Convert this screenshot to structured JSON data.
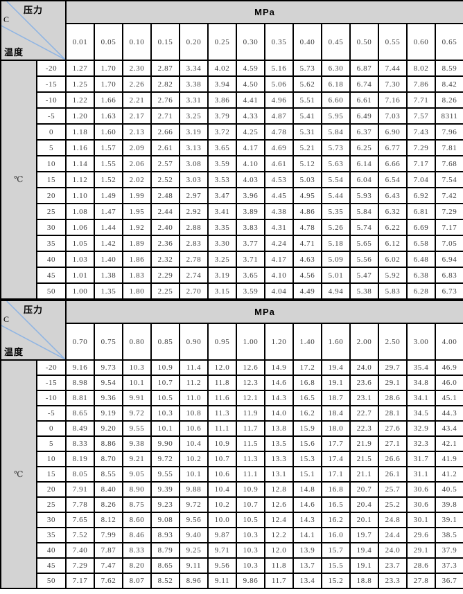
{
  "labels": {
    "pressure": "压力",
    "corner_c": "C",
    "temperature": "温度",
    "unit": "MPa",
    "celsius": "℃"
  },
  "colors": {
    "header_bg": "#d3d3d3",
    "diagonal_line": "#8eb4e3",
    "border": "#000000",
    "text": "#3c3c3c"
  },
  "tables": [
    {
      "name": "low-pressure-table",
      "pressures": [
        "0.01",
        "0.05",
        "0.10",
        "0.15",
        "0.20",
        "0.25",
        "0.30",
        "0.35",
        "0.40",
        "0.45",
        "0.50",
        "0.55",
        "0.60",
        "0.65"
      ],
      "rows": [
        {
          "temp": "-20",
          "values": [
            "1.27",
            "1.70",
            "2.30",
            "2.87",
            "3.34",
            "4.02",
            "4.59",
            "5.16",
            "5.73",
            "6.30",
            "6.87",
            "7.44",
            "8.02",
            "8.59"
          ]
        },
        {
          "temp": "-15",
          "values": [
            "1.25",
            "1.70",
            "2.26",
            "2.82",
            "3.38",
            "3.94",
            "4.50",
            "5.06",
            "5.62",
            "6.18",
            "6.74",
            "7.30",
            "7.86",
            "8.42"
          ]
        },
        {
          "temp": "-10",
          "values": [
            "1.22",
            "1.66",
            "2.21",
            "2.76",
            "3.31",
            "3.86",
            "4.41",
            "4.96",
            "5.51",
            "6.60",
            "6.61",
            "7.16",
            "7.71",
            "8.26"
          ]
        },
        {
          "temp": "-5",
          "values": [
            "1.20",
            "1.63",
            "2.17",
            "2.71",
            "3.25",
            "3.79",
            "4.33",
            "4.87",
            "5.41",
            "5.95",
            "6.49",
            "7.03",
            "7.57",
            "8311"
          ]
        },
        {
          "temp": "0",
          "values": [
            "1.18",
            "1.60",
            "2.13",
            "2.66",
            "3.19",
            "3.72",
            "4.25",
            "4.78",
            "5.31",
            "5.84",
            "6.37",
            "6.90",
            "7.43",
            "7.96"
          ]
        },
        {
          "temp": "5",
          "values": [
            "1.16",
            "1.57",
            "2.09",
            "2.61",
            "3.13",
            "3.65",
            "4.17",
            "4.69",
            "5.21",
            "5.73",
            "6.25",
            "6.77",
            "7.29",
            "7.81"
          ]
        },
        {
          "temp": "10",
          "values": [
            "1.14",
            "1.55",
            "2.06",
            "2.57",
            "3.08",
            "3.59",
            "4.10",
            "4.61",
            "5.12",
            "5.63",
            "6.14",
            "6.66",
            "7.17",
            "7.68"
          ]
        },
        {
          "temp": "15",
          "values": [
            "1.12",
            "1.52",
            "2.02",
            "2.52",
            "3.03",
            "3.53",
            "4.03",
            "4.53",
            "5.03",
            "5.54",
            "6.04",
            "6.54",
            "7.04",
            "7.54"
          ]
        },
        {
          "temp": "20",
          "values": [
            "1.10",
            "1.49",
            "1.99",
            "2.48",
            "2.97",
            "3.47",
            "3.96",
            "4.45",
            "4.95",
            "5.44",
            "5.93",
            "6.43",
            "6.92",
            "7.42"
          ]
        },
        {
          "temp": "25",
          "values": [
            "1.08",
            "1.47",
            "1.95",
            "2.44",
            "2.92",
            "3.41",
            "3.89",
            "4.38",
            "4.86",
            "5.35",
            "5.84",
            "6.32",
            "6.81",
            "7.29"
          ]
        },
        {
          "temp": "30",
          "values": [
            "1.06",
            "1.44",
            "1.92",
            "2.40",
            "2.88",
            "3.35",
            "3.83",
            "4.31",
            "4.78",
            "5.26",
            "5.74",
            "6.22",
            "6.69",
            "7.17"
          ]
        },
        {
          "temp": "35",
          "values": [
            "1.05",
            "1.42",
            "1.89",
            "2.36",
            "2.83",
            "3.30",
            "3.77",
            "4.24",
            "4.71",
            "5.18",
            "5.65",
            "6.12",
            "6.58",
            "7.05"
          ]
        },
        {
          "temp": "40",
          "values": [
            "1.03",
            "1.40",
            "1.86",
            "2.32",
            "2.78",
            "3.25",
            "3.71",
            "4.17",
            "4.63",
            "5.09",
            "5.56",
            "6.02",
            "6.48",
            "6.94"
          ]
        },
        {
          "temp": "45",
          "values": [
            "1.01",
            "1.38",
            "1.83",
            "2.29",
            "2.74",
            "3.19",
            "3.65",
            "4.10",
            "4.56",
            "5.01",
            "5.47",
            "5.92",
            "6.38",
            "6.83"
          ]
        },
        {
          "temp": "50",
          "values": [
            "1.00",
            "1.35",
            "1.80",
            "2.25",
            "2.70",
            "3.15",
            "3.59",
            "4.04",
            "4.49",
            "4.94",
            "5.38",
            "5.83",
            "6.28",
            "6.73"
          ]
        }
      ]
    },
    {
      "name": "high-pressure-table",
      "pressures": [
        "0.70",
        "0.75",
        "0.80",
        "0.85",
        "0.90",
        "0.95",
        "1.00",
        "1.20",
        "1.40",
        "1.60",
        "2.00",
        "2.50",
        "3.00",
        "4.00"
      ],
      "rows": [
        {
          "temp": "-20",
          "values": [
            "9.16",
            "9.73",
            "10.3",
            "10.9",
            "11.4",
            "12.0",
            "12.6",
            "14.9",
            "17.2",
            "19.4",
            "24.0",
            "29.7",
            "35.4",
            "46.9"
          ]
        },
        {
          "temp": "-15",
          "values": [
            "8.98",
            "9.54",
            "10.1",
            "10.7",
            "11.2",
            "11.8",
            "12.3",
            "14.6",
            "16.8",
            "19.1",
            "23.6",
            "29.1",
            "34.8",
            "46.0"
          ]
        },
        {
          "temp": "-10",
          "values": [
            "8.81",
            "9.36",
            "9.91",
            "10.5",
            "11.0",
            "11.6",
            "12.1",
            "14.3",
            "16.5",
            "18.7",
            "23.1",
            "28.6",
            "34.1",
            "45.1"
          ]
        },
        {
          "temp": "-5",
          "values": [
            "8.65",
            "9.19",
            "9.72",
            "10.3",
            "10.8",
            "11.3",
            "11.9",
            "14.0",
            "16.2",
            "18.4",
            "22.7",
            "28.1",
            "34.5",
            "44.3"
          ]
        },
        {
          "temp": "0",
          "values": [
            "8.49",
            "9.20",
            "9.55",
            "10.1",
            "10.6",
            "11.1",
            "11.7",
            "13.8",
            "15.9",
            "18.0",
            "22.3",
            "27.6",
            "32.9",
            "43.4"
          ]
        },
        {
          "temp": "5",
          "values": [
            "8.33",
            "8.86",
            "9.38",
            "9.90",
            "10.4",
            "10.9",
            "11.5",
            "13.5",
            "15.6",
            "17.7",
            "21.9",
            "27.1",
            "32.3",
            "42.1"
          ]
        },
        {
          "temp": "10",
          "values": [
            "8.19",
            "8.70",
            "9.21",
            "9.72",
            "10.2",
            "10.7",
            "11.3",
            "13.3",
            "15.3",
            "17.4",
            "21.5",
            "26.6",
            "31.7",
            "41.9"
          ]
        },
        {
          "temp": "15",
          "values": [
            "8.05",
            "8.55",
            "9.05",
            "9.55",
            "10.1",
            "10.6",
            "11.1",
            "13.1",
            "15.1",
            "17.1",
            "21.1",
            "26.1",
            "31.1",
            "41.2"
          ]
        },
        {
          "temp": "20",
          "values": [
            "7.91",
            "8.40",
            "8.90",
            "9.39",
            "9.88",
            "10.4",
            "10.9",
            "12.8",
            "14.8",
            "16.8",
            "20.7",
            "25.7",
            "30.6",
            "40.5"
          ]
        },
        {
          "temp": "25",
          "values": [
            "7.78",
            "8.26",
            "8.75",
            "9.23",
            "9.72",
            "10.2",
            "10.7",
            "12.6",
            "14.6",
            "16.5",
            "20.4",
            "25.2",
            "30.6",
            "39.8"
          ]
        },
        {
          "temp": "30",
          "values": [
            "7.65",
            "8.12",
            "8.60",
            "9.08",
            "9.56",
            "10.0",
            "10.5",
            "12.4",
            "14.3",
            "16.2",
            "20.1",
            "24.8",
            "30.1",
            "39.1"
          ]
        },
        {
          "temp": "35",
          "values": [
            "7.52",
            "7.99",
            "8.46",
            "8.93",
            "9.40",
            "9.87",
            "10.3",
            "12.2",
            "14.1",
            "16.0",
            "19.7",
            "24.4",
            "29.6",
            "38.5"
          ]
        },
        {
          "temp": "40",
          "values": [
            "7.40",
            "7.87",
            "8.33",
            "8.79",
            "9.25",
            "9.71",
            "10.3",
            "12.0",
            "13.9",
            "15.7",
            "19.4",
            "24.0",
            "29.1",
            "37.9"
          ]
        },
        {
          "temp": "45",
          "values": [
            "7.29",
            "7.47",
            "8.20",
            "8.65",
            "9.11",
            "9.56",
            "10.3",
            "11.8",
            "13.7",
            "15.5",
            "19.1",
            "23.7",
            "28.6",
            "37.3"
          ]
        },
        {
          "temp": "50",
          "values": [
            "7.17",
            "7.62",
            "8.07",
            "8.52",
            "8.96",
            "9.11",
            "9.86",
            "11.7",
            "13.4",
            "15.2",
            "18.8",
            "23.3",
            "27.8",
            "36.7"
          ]
        }
      ]
    }
  ]
}
